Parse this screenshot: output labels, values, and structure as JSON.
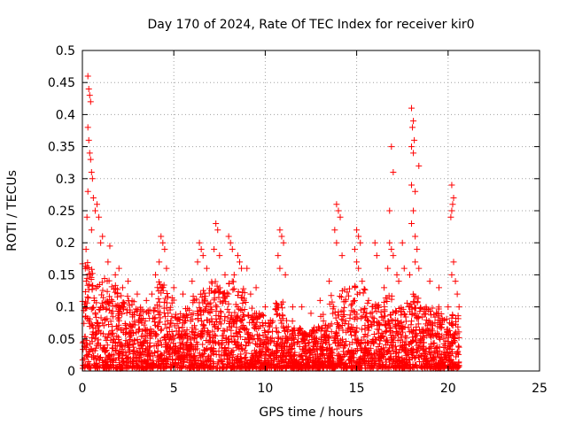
{
  "chart_data": {
    "type": "scatter",
    "title": "Day 170 of 2024, Rate Of TEC Index for receiver kir0",
    "xlabel": "GPS time / hours",
    "ylabel": "ROTI / TECUs",
    "xlim": [
      0,
      25
    ],
    "ylim": [
      0,
      0.5
    ],
    "xticks": [
      0,
      5,
      10,
      15,
      20,
      25
    ],
    "xtick_labels": [
      "0",
      "5",
      "10",
      "15",
      "20",
      "25"
    ],
    "yticks": [
      0,
      0.05,
      0.1,
      0.15,
      0.2,
      0.25,
      0.3,
      0.35,
      0.4,
      0.45,
      0.5
    ],
    "ytick_labels": [
      "0",
      "0.05",
      "0.1",
      "0.15",
      "0.2",
      "0.25",
      "0.3",
      "0.35",
      "0.4",
      "0.45",
      "0.5"
    ],
    "grid": true,
    "marker": "plus",
    "color": "#ff0000",
    "series": [
      {
        "name": "ROTI",
        "points": [
          [
            0.3,
            0.46
          ],
          [
            0.35,
            0.44
          ],
          [
            0.4,
            0.43
          ],
          [
            0.45,
            0.42
          ],
          [
            0.3,
            0.38
          ],
          [
            0.35,
            0.36
          ],
          [
            0.4,
            0.34
          ],
          [
            0.45,
            0.33
          ],
          [
            0.5,
            0.31
          ],
          [
            0.55,
            0.3
          ],
          [
            0.3,
            0.28
          ],
          [
            0.6,
            0.27
          ],
          [
            0.7,
            0.25
          ],
          [
            0.8,
            0.26
          ],
          [
            0.9,
            0.24
          ],
          [
            0.5,
            0.22
          ],
          [
            1.0,
            0.2
          ],
          [
            0.2,
            0.19
          ],
          [
            1.5,
            0.195
          ],
          [
            1.4,
            0.17
          ],
          [
            1.1,
            0.21
          ],
          [
            0.25,
            0.24
          ],
          [
            4.3,
            0.21
          ],
          [
            4.4,
            0.2
          ],
          [
            4.5,
            0.19
          ],
          [
            4.2,
            0.17
          ],
          [
            4.6,
            0.16
          ],
          [
            4.0,
            0.15
          ],
          [
            6.4,
            0.2
          ],
          [
            6.5,
            0.19
          ],
          [
            6.6,
            0.18
          ],
          [
            6.3,
            0.17
          ],
          [
            6.8,
            0.16
          ],
          [
            7.3,
            0.23
          ],
          [
            7.4,
            0.22
          ],
          [
            7.2,
            0.19
          ],
          [
            7.5,
            0.18
          ],
          [
            8.0,
            0.21
          ],
          [
            8.1,
            0.2
          ],
          [
            8.2,
            0.19
          ],
          [
            8.5,
            0.18
          ],
          [
            8.6,
            0.17
          ],
          [
            8.7,
            0.16
          ],
          [
            8.3,
            0.15
          ],
          [
            9.0,
            0.16
          ],
          [
            10.8,
            0.22
          ],
          [
            10.9,
            0.21
          ],
          [
            11.0,
            0.2
          ],
          [
            10.7,
            0.18
          ],
          [
            10.8,
            0.16
          ],
          [
            11.1,
            0.15
          ],
          [
            13.9,
            0.26
          ],
          [
            14.0,
            0.25
          ],
          [
            14.1,
            0.24
          ],
          [
            13.8,
            0.22
          ],
          [
            13.9,
            0.2
          ],
          [
            14.2,
            0.18
          ],
          [
            15.0,
            0.22
          ],
          [
            15.1,
            0.21
          ],
          [
            15.2,
            0.2
          ],
          [
            14.9,
            0.19
          ],
          [
            15.0,
            0.17
          ],
          [
            15.1,
            0.16
          ],
          [
            15.3,
            0.14
          ],
          [
            16.0,
            0.2
          ],
          [
            16.1,
            0.18
          ],
          [
            16.8,
            0.2
          ],
          [
            16.9,
            0.19
          ],
          [
            17.0,
            0.18
          ],
          [
            16.7,
            0.16
          ],
          [
            17.2,
            0.15
          ],
          [
            17.3,
            0.14
          ],
          [
            17.6,
            0.16
          ],
          [
            16.9,
            0.35
          ],
          [
            17.0,
            0.31
          ],
          [
            16.8,
            0.25
          ],
          [
            17.5,
            0.2
          ],
          [
            18.0,
            0.41
          ],
          [
            18.1,
            0.39
          ],
          [
            18.05,
            0.38
          ],
          [
            18.15,
            0.36
          ],
          [
            18.0,
            0.35
          ],
          [
            18.1,
            0.34
          ],
          [
            18.4,
            0.32
          ],
          [
            18.0,
            0.29
          ],
          [
            18.2,
            0.28
          ],
          [
            18.1,
            0.25
          ],
          [
            18.0,
            0.23
          ],
          [
            18.2,
            0.21
          ],
          [
            18.3,
            0.19
          ],
          [
            18.2,
            0.17
          ],
          [
            18.4,
            0.16
          ],
          [
            17.9,
            0.15
          ],
          [
            20.2,
            0.29
          ],
          [
            20.3,
            0.27
          ],
          [
            20.25,
            0.26
          ],
          [
            20.2,
            0.25
          ],
          [
            20.15,
            0.24
          ],
          [
            20.3,
            0.17
          ],
          [
            20.2,
            0.15
          ],
          [
            20.4,
            0.14
          ],
          [
            20.5,
            0.12
          ],
          [
            20.0,
            0.1
          ],
          [
            2.0,
            0.16
          ],
          [
            2.5,
            0.14
          ],
          [
            3.0,
            0.12
          ],
          [
            3.5,
            0.11
          ],
          [
            5.0,
            0.13
          ],
          [
            5.5,
            0.12
          ],
          [
            9.5,
            0.13
          ],
          [
            10.0,
            0.1
          ],
          [
            11.5,
            0.1
          ],
          [
            12.0,
            0.1
          ],
          [
            12.5,
            0.09
          ],
          [
            13.0,
            0.11
          ],
          [
            13.5,
            0.14
          ],
          [
            16.5,
            0.13
          ],
          [
            19.0,
            0.14
          ],
          [
            19.5,
            0.13
          ],
          [
            20.6,
            0.1
          ],
          [
            1.8,
            0.15
          ],
          [
            2.2,
            0.13
          ],
          [
            3.8,
            0.12
          ],
          [
            6.0,
            0.14
          ],
          [
            7.8,
            0.15
          ],
          [
            9.2,
            0.12
          ]
        ],
        "density_bands": [
          [
            0.0,
            0.5,
            0.17
          ],
          [
            0.5,
            1.0,
            0.16
          ],
          [
            1.0,
            1.5,
            0.15
          ],
          [
            1.5,
            2.0,
            0.14
          ],
          [
            2.0,
            2.5,
            0.12
          ],
          [
            2.5,
            3.0,
            0.11
          ],
          [
            3.0,
            3.5,
            0.1
          ],
          [
            3.5,
            4.0,
            0.1
          ],
          [
            4.0,
            4.5,
            0.14
          ],
          [
            4.5,
            5.0,
            0.13
          ],
          [
            5.0,
            5.5,
            0.09
          ],
          [
            5.5,
            6.0,
            0.1
          ],
          [
            6.0,
            6.5,
            0.12
          ],
          [
            6.5,
            7.0,
            0.13
          ],
          [
            7.0,
            7.5,
            0.14
          ],
          [
            7.5,
            8.0,
            0.13
          ],
          [
            8.0,
            8.5,
            0.14
          ],
          [
            8.5,
            9.0,
            0.13
          ],
          [
            9.0,
            9.5,
            0.1
          ],
          [
            9.5,
            10.0,
            0.09
          ],
          [
            10.0,
            10.5,
            0.08
          ],
          [
            10.5,
            11.0,
            0.11
          ],
          [
            11.0,
            11.5,
            0.08
          ],
          [
            11.5,
            12.0,
            0.07
          ],
          [
            12.0,
            12.5,
            0.06
          ],
          [
            12.5,
            13.0,
            0.07
          ],
          [
            13.0,
            13.5,
            0.09
          ],
          [
            13.5,
            14.0,
            0.12
          ],
          [
            14.0,
            14.5,
            0.13
          ],
          [
            14.5,
            15.0,
            0.14
          ],
          [
            15.0,
            15.5,
            0.13
          ],
          [
            15.5,
            16.0,
            0.11
          ],
          [
            16.0,
            16.5,
            0.11
          ],
          [
            16.5,
            17.0,
            0.12
          ],
          [
            17.0,
            17.5,
            0.1
          ],
          [
            17.5,
            18.0,
            0.11
          ],
          [
            18.0,
            18.5,
            0.12
          ],
          [
            18.5,
            19.0,
            0.1
          ],
          [
            19.0,
            19.5,
            0.1
          ],
          [
            19.5,
            20.0,
            0.09
          ],
          [
            20.0,
            20.6,
            0.09
          ]
        ]
      }
    ]
  }
}
